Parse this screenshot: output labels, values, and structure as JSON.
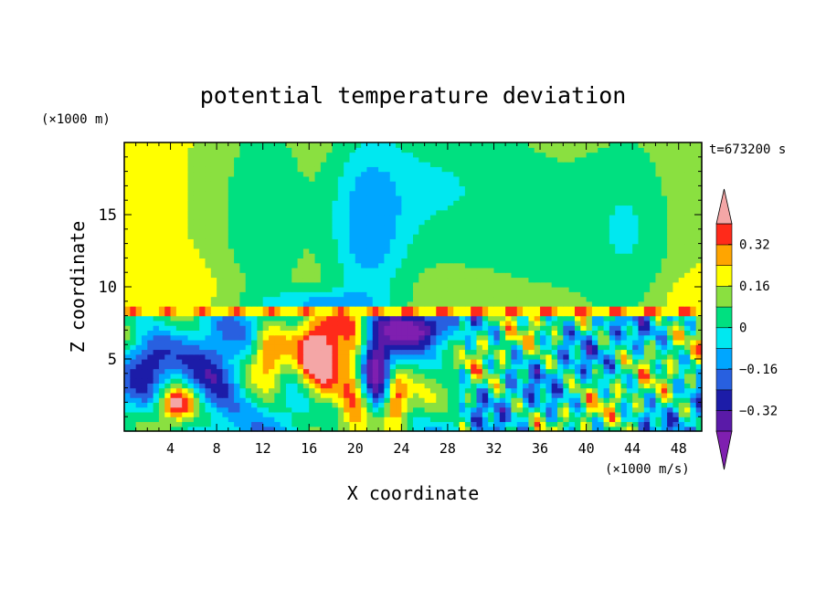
{
  "chart_data": {
    "type": "heatmap",
    "title": "potential temperature deviation",
    "xlabel": "X coordinate",
    "ylabel": "Z coordinate",
    "x_unit": "(×1000 m/s)",
    "y_unit": "(×1000 m)",
    "time_label": "t=673200 s",
    "xlim": [
      0,
      50
    ],
    "ylim": [
      0,
      20
    ],
    "x_ticks": [
      4,
      8,
      12,
      16,
      20,
      24,
      28,
      32,
      36,
      40,
      44,
      48
    ],
    "y_ticks": [
      5,
      10,
      15
    ],
    "colorbar": {
      "labels": [
        "0.32",
        "0.16",
        "0",
        "−0.16",
        "−0.32"
      ],
      "label_values": [
        0.32,
        0.16,
        0,
        -0.16,
        -0.32
      ],
      "levels": [
        -0.4,
        -0.32,
        -0.24,
        -0.16,
        -0.08,
        0,
        0.08,
        0.16,
        0.24,
        0.32,
        0.4
      ],
      "under_color": "#7f1fb0",
      "over_color": "#f4a6a6",
      "colors": [
        "#5a1aa8",
        "#1c1ca8",
        "#2860e0",
        "#00a6ff",
        "#00e8f0",
        "#00e080",
        "#8ae040",
        "#ffff00",
        "#ffa500",
        "#ff2a1a"
      ],
      "extend": "both"
    }
  }
}
